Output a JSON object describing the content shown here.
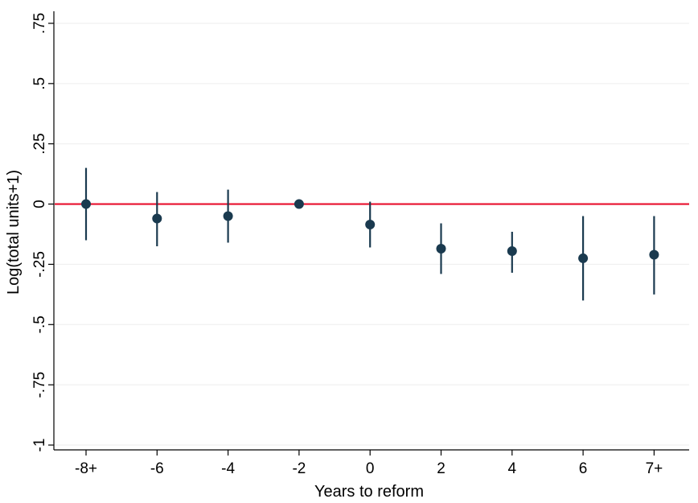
{
  "chart_data": {
    "type": "scatter",
    "subtype": "coefficient-plot-with-confidence-intervals",
    "title": "",
    "xlabel": "Years to reform",
    "ylabel": "Log(total units+1)",
    "x_tick_labels": [
      "-8+",
      "-6",
      "-4",
      "-2",
      "0",
      "2",
      "4",
      "6",
      "7+"
    ],
    "y_ticks": [
      -1,
      -0.75,
      -0.5,
      -0.25,
      0,
      0.25,
      0.5,
      0.75
    ],
    "y_tick_labels": [
      "-1",
      "-.75",
      "-.5",
      "-.25",
      "0",
      ".25",
      ".5",
      ".75"
    ],
    "ylim": [
      -1.02,
      0.8
    ],
    "grid": "horizontal",
    "reference_line": {
      "y": 0,
      "color": "#e8102e"
    },
    "point_color": "#1a3a4f",
    "ci_color": "#1a3a4f",
    "points": [
      {
        "x": "-8+",
        "estimate": 0.0,
        "ci_low": -0.15,
        "ci_high": 0.15
      },
      {
        "x": "-6",
        "estimate": -0.06,
        "ci_low": -0.175,
        "ci_high": 0.05
      },
      {
        "x": "-4",
        "estimate": -0.05,
        "ci_low": -0.16,
        "ci_high": 0.06
      },
      {
        "x": "-2",
        "estimate": 0.0,
        "ci_low": 0.0,
        "ci_high": 0.0
      },
      {
        "x": "0",
        "estimate": -0.085,
        "ci_low": -0.18,
        "ci_high": 0.01
      },
      {
        "x": "2",
        "estimate": -0.185,
        "ci_low": -0.29,
        "ci_high": -0.08
      },
      {
        "x": "4",
        "estimate": -0.195,
        "ci_low": -0.285,
        "ci_high": -0.115
      },
      {
        "x": "6",
        "estimate": -0.225,
        "ci_low": -0.4,
        "ci_high": -0.05
      },
      {
        "x": "7+",
        "estimate": -0.21,
        "ci_low": -0.375,
        "ci_high": -0.05
      }
    ]
  }
}
